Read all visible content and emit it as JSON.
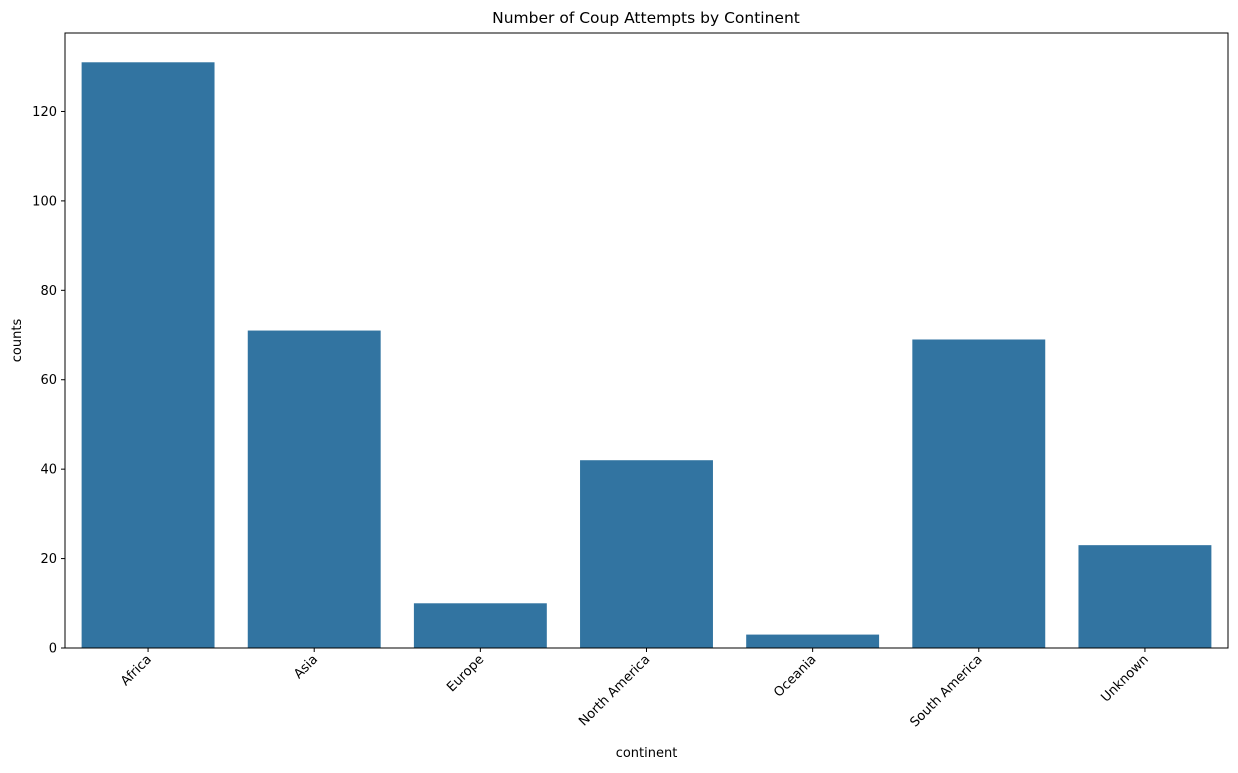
{
  "chart_data": {
    "type": "bar",
    "title": "Number of Coup Attempts by Continent",
    "xlabel": "continent",
    "ylabel": "counts",
    "categories": [
      "Africa",
      "Asia",
      "Europe",
      "North America",
      "Oceania",
      "South America",
      "Unknown"
    ],
    "values": [
      131,
      71,
      10,
      42,
      3,
      69,
      23
    ],
    "ylim": [
      0,
      137.55
    ],
    "yticks": [
      0,
      20,
      40,
      60,
      80,
      100,
      120
    ],
    "ytick_labels": [
      "0",
      "20",
      "40",
      "60",
      "80",
      "100",
      "120"
    ],
    "xtick_rotation": "45 degrees",
    "grid": false,
    "legend": "none",
    "bar_color": "#3274a1"
  }
}
